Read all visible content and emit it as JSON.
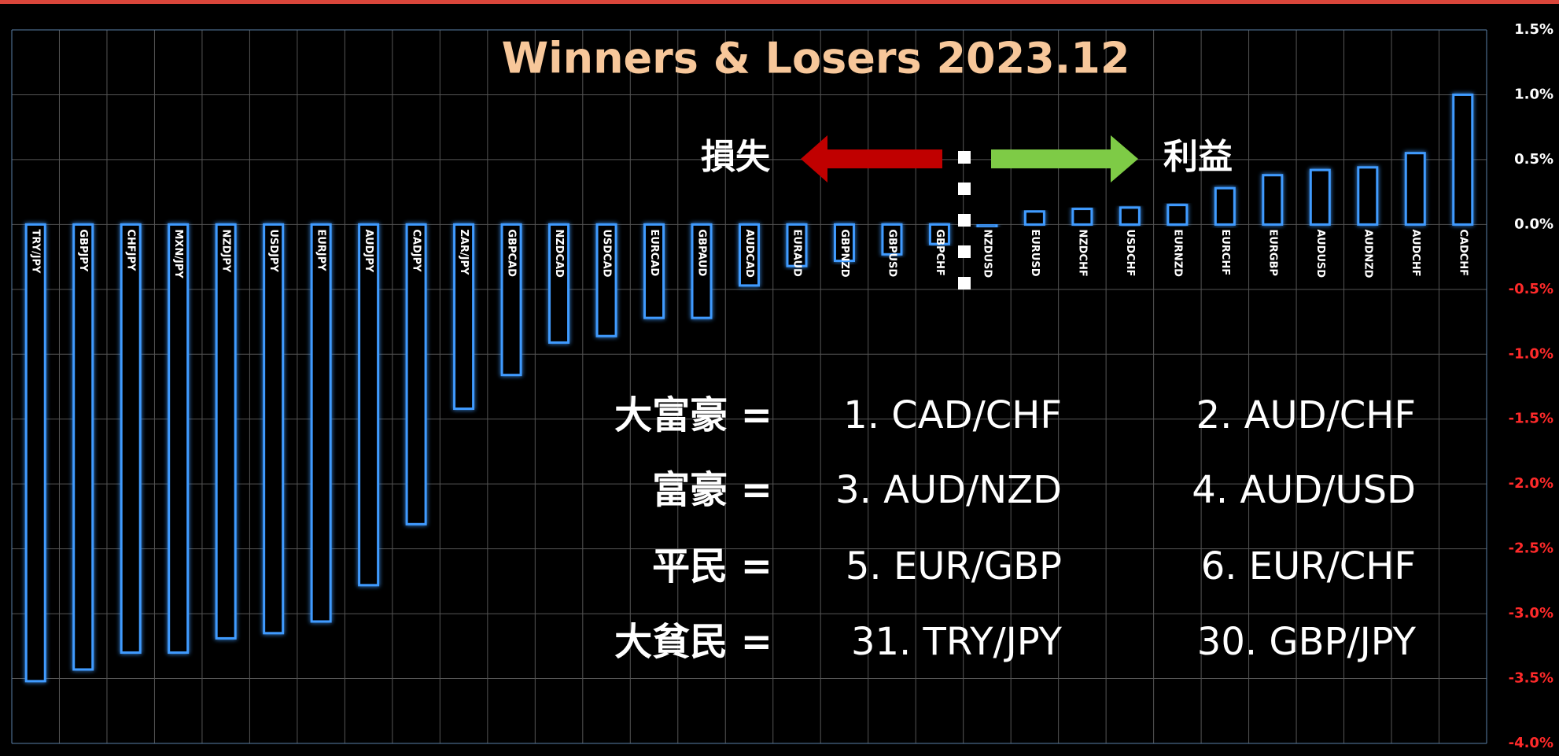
{
  "chart_data": {
    "type": "bar",
    "title": "Winners & Losers  2023.12",
    "categories": [
      "TRY/JPY",
      "GBPJPY",
      "CHFJPY",
      "MXN/JPY",
      "NZDJPY",
      "USDJPY",
      "EURJPY",
      "AUDJPY",
      "CADJPY",
      "ZAR/JPY",
      "GBPCAD",
      "NZDCAD",
      "USDCAD",
      "EURCAD",
      "GBPAUD",
      "AUDCAD",
      "EURAUD",
      "GBPNZD",
      "GBPUSD",
      "GBPCHF",
      "NZDUSD",
      "EURUSD",
      "NZDCHF",
      "USDCHF",
      "EURNZD",
      "EURCHF",
      "EURGBP",
      "AUDUSD",
      "AUDNZD",
      "AUDCHF",
      "CADCHF"
    ],
    "values": [
      -3.52,
      -3.43,
      -3.3,
      -3.3,
      -3.19,
      -3.15,
      -3.06,
      -2.78,
      -2.31,
      -1.42,
      -1.16,
      -0.91,
      -0.86,
      -0.72,
      -0.72,
      -0.47,
      -0.32,
      -0.28,
      -0.23,
      -0.15,
      -0.02,
      0.1,
      0.12,
      0.13,
      0.15,
      0.28,
      0.38,
      0.42,
      0.44,
      0.55,
      1.0
    ],
    "color": "#3f9bff",
    "ylim": [
      -4.0,
      1.5
    ],
    "yticks": [
      {
        "value": 1.5,
        "label": "1.5%"
      },
      {
        "value": 1.0,
        "label": "1.0%"
      },
      {
        "value": 0.5,
        "label": "0.5%"
      },
      {
        "value": 0.0,
        "label": "0.0%"
      },
      {
        "value": -0.5,
        "label": "-0.5%"
      },
      {
        "value": -1.0,
        "label": "-1.0%"
      },
      {
        "value": -1.5,
        "label": "-1.5%"
      },
      {
        "value": -2.0,
        "label": "-2.0%"
      },
      {
        "value": -2.5,
        "label": "-2.5%"
      },
      {
        "value": -3.0,
        "label": "-3.0%"
      },
      {
        "value": -3.5,
        "label": "-3.5%"
      },
      {
        "value": -4.0,
        "label": "-4.0%"
      }
    ],
    "grid": true,
    "annotations": {
      "loss": "損失",
      "gain": "利益"
    },
    "ranking": [
      [
        "大富豪 =",
        "1. CAD/CHF",
        "2. AUD/CHF"
      ],
      [
        "富豪 =",
        "3. AUD/NZD",
        "4. AUD/USD"
      ],
      [
        "平民 =",
        "5. EUR/GBP",
        "6. EUR/CHF"
      ],
      [
        "大貧民 =",
        "31. TRY/JPY",
        "30. GBP/JPY"
      ]
    ]
  }
}
